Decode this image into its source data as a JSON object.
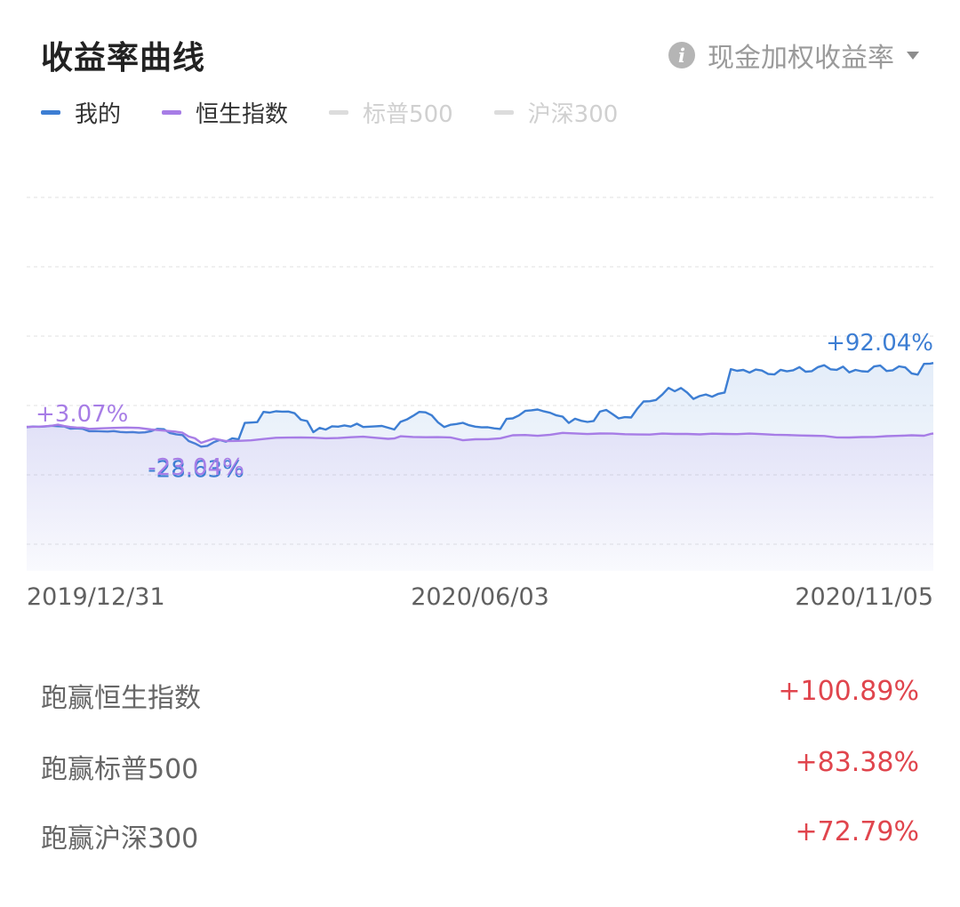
{
  "header": {
    "title": "收益率曲线",
    "metric_label": "现金加权收益率"
  },
  "legend": [
    {
      "label": "我的",
      "color": "#3d7ed3",
      "active": true
    },
    {
      "label": "恒生指数",
      "color": "#a77de6",
      "active": true
    },
    {
      "label": "标普500",
      "color": "#dcdcdc",
      "active": false
    },
    {
      "label": "沪深300",
      "color": "#dcdcdc",
      "active": false
    }
  ],
  "chart_data": {
    "type": "line",
    "x_start": "2019/12/31",
    "x_end": "2020/11/05",
    "x_ticks": [
      "2019/12/31",
      "2020/06/03",
      "2020/11/05"
    ],
    "grid": "horizontal dashed",
    "series": [
      {
        "name": "我的",
        "color": "#3d7ed3",
        "points": [
          [
            0,
            -0.5
          ],
          [
            2,
            0.4
          ],
          [
            4,
            0.1
          ],
          [
            6,
            0.5
          ],
          [
            8,
            1.6
          ],
          [
            10,
            0.9
          ],
          [
            12,
            0.7
          ],
          [
            14,
            -2.6
          ],
          [
            16,
            -2.2
          ],
          [
            18,
            -2.8
          ],
          [
            20,
            -6.3
          ],
          [
            22,
            -6.1
          ],
          [
            24,
            -6.6
          ],
          [
            26,
            -6.8
          ],
          [
            28,
            -6.2
          ],
          [
            30,
            -7.4
          ],
          [
            32,
            -7.9
          ],
          [
            34,
            -7.6
          ],
          [
            36,
            -8.5
          ],
          [
            38,
            -8.0
          ],
          [
            40,
            -6.2
          ],
          [
            42,
            -2.9
          ],
          [
            44,
            -3.5
          ],
          [
            46,
            -9.0
          ],
          [
            48,
            -10.8
          ],
          [
            50,
            -11.9
          ],
          [
            52,
            -20.5
          ],
          [
            54,
            -24.0
          ],
          [
            56,
            -28.6
          ],
          [
            58,
            -27.5
          ],
          [
            60,
            -22.3
          ],
          [
            62,
            -19.0
          ],
          [
            64,
            -21.4
          ],
          [
            66,
            -16.5
          ],
          [
            68,
            -18.0
          ],
          [
            70,
            5.7
          ],
          [
            72,
            6.2
          ],
          [
            74,
            6.8
          ],
          [
            76,
            21.5
          ],
          [
            78,
            20.5
          ],
          [
            80,
            22.4
          ],
          [
            82,
            21.9
          ],
          [
            84,
            22.1
          ],
          [
            86,
            19.6
          ],
          [
            88,
            10.3
          ],
          [
            90,
            8.3
          ],
          [
            92,
            -7.7
          ],
          [
            94,
            -1.6
          ],
          [
            96,
            -4.0
          ],
          [
            98,
            0.8
          ],
          [
            100,
            0.2
          ],
          [
            102,
            2.0
          ],
          [
            104,
            0.4
          ],
          [
            106,
            4.5
          ],
          [
            108,
            -0.3
          ],
          [
            110,
            0.2
          ],
          [
            112,
            0.8
          ],
          [
            114,
            1.3
          ],
          [
            116,
            -1.3
          ],
          [
            118,
            -3.8
          ],
          [
            120,
            7.2
          ],
          [
            122,
            10.5
          ],
          [
            124,
            15.8
          ],
          [
            126,
            21.5
          ],
          [
            128,
            20.9
          ],
          [
            130,
            16.5
          ],
          [
            132,
            6.5
          ],
          [
            134,
            -0.3
          ],
          [
            136,
            3.0
          ],
          [
            138,
            4.1
          ],
          [
            140,
            5.8
          ],
          [
            142,
            2.3
          ],
          [
            144,
            0.2
          ],
          [
            146,
            -0.8
          ],
          [
            148,
            -0.6
          ],
          [
            150,
            -2.2
          ],
          [
            152,
            -3.1
          ],
          [
            154,
            11.4
          ],
          [
            156,
            12.2
          ],
          [
            158,
            16.4
          ],
          [
            160,
            23.0
          ],
          [
            162,
            23.8
          ],
          [
            164,
            25.0
          ],
          [
            166,
            22.3
          ],
          [
            168,
            20.2
          ],
          [
            170,
            16.6
          ],
          [
            172,
            14.8
          ],
          [
            174,
            5.6
          ],
          [
            176,
            11.7
          ],
          [
            178,
            8.7
          ],
          [
            180,
            7.0
          ],
          [
            182,
            8.5
          ],
          [
            184,
            21.9
          ],
          [
            186,
            24.4
          ],
          [
            188,
            18.5
          ],
          [
            190,
            12.2
          ],
          [
            192,
            14.0
          ],
          [
            194,
            13.5
          ],
          [
            196,
            26.2
          ],
          [
            198,
            36.6
          ],
          [
            200,
            36.9
          ],
          [
            202,
            38.7
          ],
          [
            204,
            46.6
          ],
          [
            206,
            56.2
          ],
          [
            208,
            51.3
          ],
          [
            210,
            56.0
          ],
          [
            212,
            49.4
          ],
          [
            214,
            40.2
          ],
          [
            216,
            44.4
          ],
          [
            218,
            46.7
          ],
          [
            220,
            43.4
          ],
          [
            222,
            47.6
          ],
          [
            224,
            49.5
          ],
          [
            226,
            83.2
          ],
          [
            228,
            80.8
          ],
          [
            230,
            82.1
          ],
          [
            232,
            78.2
          ],
          [
            234,
            82.6
          ],
          [
            236,
            81.2
          ],
          [
            238,
            76.1
          ],
          [
            240,
            75.5
          ],
          [
            242,
            82.2
          ],
          [
            244,
            80.0
          ],
          [
            246,
            81.5
          ],
          [
            248,
            86.0
          ],
          [
            250,
            79.5
          ],
          [
            252,
            80.2
          ],
          [
            254,
            86.2
          ],
          [
            256,
            88.8
          ],
          [
            258,
            83.0
          ],
          [
            260,
            82.2
          ],
          [
            262,
            86.8
          ],
          [
            264,
            78.5
          ],
          [
            266,
            82.0
          ],
          [
            268,
            80.1
          ],
          [
            270,
            79.6
          ],
          [
            272,
            87.0
          ],
          [
            274,
            88.3
          ],
          [
            276,
            80.5
          ],
          [
            278,
            81.5
          ],
          [
            280,
            87.2
          ],
          [
            282,
            85.6
          ],
          [
            284,
            77.0
          ],
          [
            286,
            75.3
          ],
          [
            288,
            90.8
          ],
          [
            290,
            91.2
          ],
          [
            291,
            92.04
          ]
        ],
        "start_label": "",
        "min_label": "-28.63%",
        "end_label": "+92.04%"
      },
      {
        "name": "恒生指数",
        "color": "#a77de6",
        "points": [
          [
            0,
            0.0
          ],
          [
            4,
            0.3
          ],
          [
            8,
            1.5
          ],
          [
            10,
            3.07
          ],
          [
            12,
            1.2
          ],
          [
            14,
            -0.3
          ],
          [
            16,
            -1.0
          ],
          [
            18,
            -1.2
          ],
          [
            20,
            -3.0
          ],
          [
            24,
            -2.2
          ],
          [
            28,
            -1.5
          ],
          [
            32,
            -1.0
          ],
          [
            36,
            -1.5
          ],
          [
            40,
            -3.8
          ],
          [
            44,
            -5.4
          ],
          [
            48,
            -7.0
          ],
          [
            50,
            -8.5
          ],
          [
            52,
            -14.0
          ],
          [
            54,
            -16.6
          ],
          [
            56,
            -23.04
          ],
          [
            58,
            -20.0
          ],
          [
            60,
            -17.0
          ],
          [
            64,
            -20.5
          ],
          [
            68,
            -20.2
          ],
          [
            72,
            -19.5
          ],
          [
            76,
            -17.6
          ],
          [
            80,
            -15.8
          ],
          [
            84,
            -15.5
          ],
          [
            88,
            -15.4
          ],
          [
            92,
            -15.6
          ],
          [
            96,
            -16.5
          ],
          [
            100,
            -16.2
          ],
          [
            104,
            -15.0
          ],
          [
            108,
            -14.2
          ],
          [
            112,
            -15.8
          ],
          [
            116,
            -17.3
          ],
          [
            118,
            -16.8
          ],
          [
            120,
            -13.6
          ],
          [
            124,
            -14.6
          ],
          [
            128,
            -15.0
          ],
          [
            132,
            -14.9
          ],
          [
            136,
            -15.2
          ],
          [
            140,
            -19.4
          ],
          [
            144,
            -18.0
          ],
          [
            148,
            -17.8
          ],
          [
            152,
            -16.5
          ],
          [
            156,
            -12.2
          ],
          [
            160,
            -11.8
          ],
          [
            164,
            -13.0
          ],
          [
            168,
            -11.4
          ],
          [
            172,
            -8.7
          ],
          [
            176,
            -9.5
          ],
          [
            180,
            -10.4
          ],
          [
            184,
            -9.6
          ],
          [
            188,
            -9.8
          ],
          [
            192,
            -10.6
          ],
          [
            196,
            -11.0
          ],
          [
            200,
            -11.2
          ],
          [
            204,
            -9.8
          ],
          [
            208,
            -10.2
          ],
          [
            212,
            -10.2
          ],
          [
            216,
            -10.9
          ],
          [
            220,
            -9.9
          ],
          [
            224,
            -10.2
          ],
          [
            228,
            -10.5
          ],
          [
            232,
            -9.8
          ],
          [
            236,
            -10.5
          ],
          [
            240,
            -11.4
          ],
          [
            244,
            -11.8
          ],
          [
            248,
            -12.4
          ],
          [
            252,
            -12.8
          ],
          [
            256,
            -13.2
          ],
          [
            260,
            -15.2
          ],
          [
            264,
            -15.4
          ],
          [
            268,
            -14.8
          ],
          [
            272,
            -14.6
          ],
          [
            276,
            -13.4
          ],
          [
            280,
            -13.0
          ],
          [
            284,
            -12.2
          ],
          [
            288,
            -12.8
          ],
          [
            290,
            -10.4
          ],
          [
            291,
            -9.5
          ]
        ],
        "start_label": "+3.07%",
        "min_label": "-23.04%",
        "end_label": ""
      }
    ]
  },
  "comparisons": [
    {
      "label": "跑赢恒生指数",
      "value": "+100.89%"
    },
    {
      "label": "跑赢标普500",
      "value": "+83.38%"
    },
    {
      "label": "跑赢沪深300",
      "value": "+72.79%"
    }
  ]
}
